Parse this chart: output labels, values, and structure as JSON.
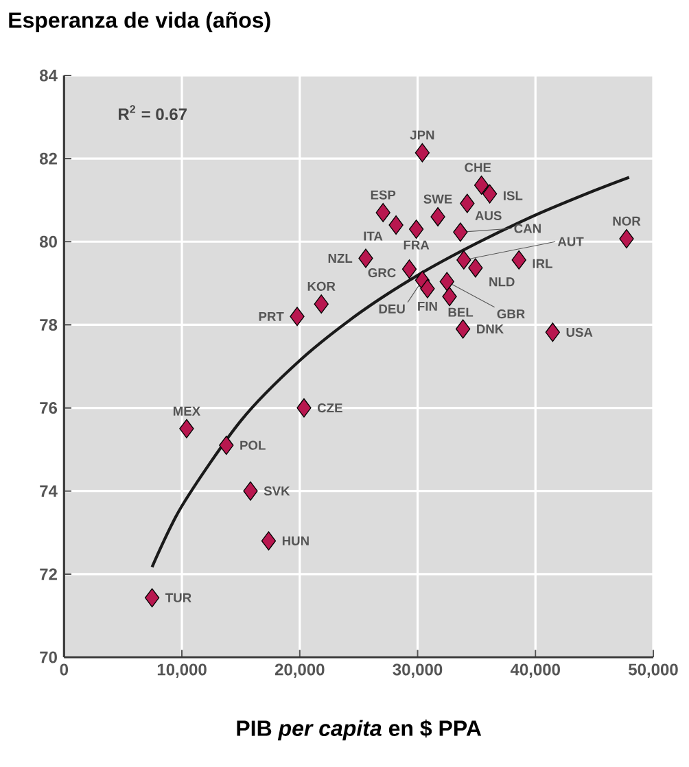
{
  "chart_data": {
    "type": "scatter",
    "ylabel": "Esperanza de vida (años)",
    "xlabel": "PIB *per capita* en $ PPA",
    "xlim": [
      0,
      50000
    ],
    "ylim": [
      70,
      84
    ],
    "xticks": [
      {
        "value": 0,
        "label": "0"
      },
      {
        "value": 10000,
        "label": "10,000"
      },
      {
        "value": 20000,
        "label": "20,000"
      },
      {
        "value": 30000,
        "label": "30,000"
      },
      {
        "value": 40000,
        "label": "40,000"
      },
      {
        "value": 50000,
        "label": "50,000"
      }
    ],
    "yticks": [
      70,
      72,
      74,
      76,
      78,
      80,
      82,
      84
    ],
    "grid": true,
    "series": [
      {
        "marker": "diamond",
        "color": "#b8174f",
        "x": [
          7470,
          10400,
          13770,
          15820,
          17360,
          20360,
          19780,
          21830,
          25600,
          27070,
          28170,
          29890,
          31720,
          30400,
          35420,
          36120,
          34210,
          33630,
          33920,
          34910,
          38600,
          47730,
          29300,
          30400,
          30840,
          32490,
          32710,
          33850,
          41460
        ],
        "values": [
          71.43,
          75.5,
          75.1,
          74.0,
          72.8,
          76.0,
          78.2,
          78.5,
          79.6,
          80.7,
          80.4,
          80.3,
          80.6,
          82.14,
          81.36,
          81.15,
          80.92,
          80.23,
          79.56,
          79.37,
          79.56,
          80.07,
          79.34,
          79.07,
          78.87,
          79.04,
          78.68,
          77.9,
          77.82
        ]
      },
      {
        "type": "line",
        "color": "#1a1a1a",
        "x": [
          7470,
          10000,
          15000,
          20000,
          25000,
          30000,
          35000,
          40000,
          45000,
          47950
        ],
        "values": [
          72.17,
          73.64,
          75.69,
          77.14,
          78.27,
          79.19,
          79.96,
          80.64,
          81.23,
          81.55
        ]
      }
    ],
    "annotations": [
      "R$^{2}$ = 0.67",
      {
        "text": "TUR",
        "x": 7470,
        "y": 71.43
      },
      {
        "text": "MEX",
        "x": 10400,
        "y": 75.5
      },
      {
        "text": "POL",
        "x": 13770,
        "y": 75.1
      },
      {
        "text": "SVK",
        "x": 15820,
        "y": 74.0
      },
      {
        "text": "HUN",
        "x": 17360,
        "y": 72.8
      },
      {
        "text": "CZE",
        "x": 20360,
        "y": 76.0
      },
      {
        "text": "PRT",
        "x": 19780,
        "y": 78.2
      },
      {
        "text": "KOR",
        "x": 21830,
        "y": 78.5
      },
      {
        "text": "NZL",
        "x": 25600,
        "y": 79.6
      },
      {
        "text": "ESP",
        "x": 27070,
        "y": 80.7
      },
      {
        "text": "ITA",
        "x": 28170,
        "y": 80.4
      },
      {
        "text": "FRA",
        "x": 29890,
        "y": 80.3
      },
      {
        "text": "SWE",
        "x": 31720,
        "y": 80.6
      },
      {
        "text": "JPN",
        "x": 30400,
        "y": 82.14
      },
      {
        "text": "CHE",
        "x": 35420,
        "y": 81.36
      },
      {
        "text": "ISL",
        "x": 36120,
        "y": 81.15
      },
      {
        "text": "AUS",
        "x": 34210,
        "y": 80.92
      },
      {
        "text": "CAN",
        "x": 33630,
        "y": 80.23
      },
      {
        "text": "AUT",
        "x": 33920,
        "y": 79.56
      },
      {
        "text": "NLD",
        "x": 34910,
        "y": 79.37
      },
      {
        "text": "IRL",
        "x": 38600,
        "y": 79.56
      },
      {
        "text": "NOR",
        "x": 47730,
        "y": 80.07
      },
      {
        "text": "GRC",
        "x": 29300,
        "y": 79.34
      },
      {
        "text": "DEU",
        "x": 30400,
        "y": 79.07
      },
      {
        "text": "FIN",
        "x": 30840,
        "y": 78.87
      },
      {
        "text": "GBR",
        "x": 32490,
        "y": 79.04
      },
      {
        "text": "BEL",
        "x": 32710,
        "y": 78.68
      },
      {
        "text": "DNK",
        "x": 33850,
        "y": 77.9
      },
      {
        "text": "USA",
        "x": 41460,
        "y": 77.82
      }
    ]
  }
}
